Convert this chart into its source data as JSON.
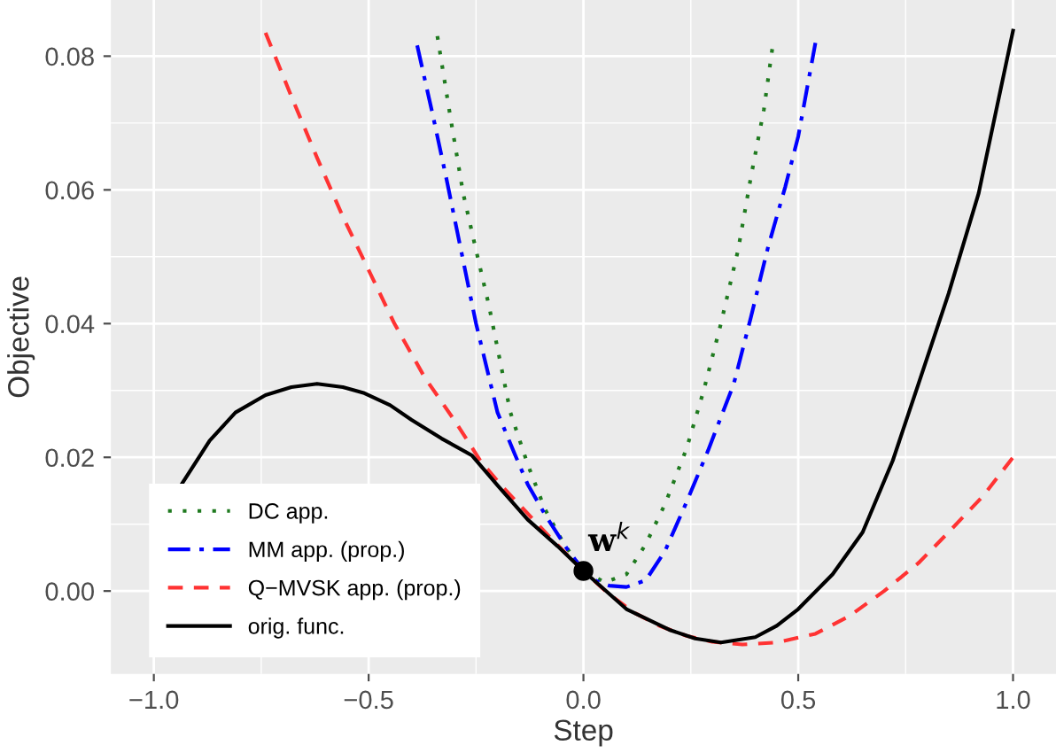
{
  "chart_data": {
    "type": "line",
    "xlabel": "Step",
    "ylabel": "Objective",
    "xlim": [
      -1.1,
      1.1
    ],
    "ylim": [
      -0.0124,
      0.0884
    ],
    "xticks": [
      {
        "value": -1.0,
        "label": "−1.0"
      },
      {
        "value": -0.5,
        "label": "−0.5"
      },
      {
        "value": 0.0,
        "label": "0.0"
      },
      {
        "value": 0.5,
        "label": "0.5"
      },
      {
        "value": 1.0,
        "label": "1.0"
      }
    ],
    "yticks": [
      {
        "value": 0.0,
        "label": "0.00"
      },
      {
        "value": 0.02,
        "label": "0.02"
      },
      {
        "value": 0.04,
        "label": "0.04"
      },
      {
        "value": 0.06,
        "label": "0.06"
      },
      {
        "value": 0.08,
        "label": "0.08"
      }
    ],
    "grid": true,
    "legend": "bottom left",
    "series": [
      {
        "name": "DC app.",
        "color": "#1f7a1f",
        "line_style": "dotted",
        "x": [
          -0.34,
          -0.31,
          -0.28,
          -0.25,
          -0.22,
          -0.17,
          -0.13,
          -0.09,
          -0.045,
          0.0,
          0.05,
          0.1,
          0.145,
          0.19,
          0.24,
          0.28,
          0.32,
          0.36,
          0.39,
          0.42,
          0.44
        ],
        "values": [
          0.083,
          0.071,
          0.0595,
          0.051,
          0.0427,
          0.0267,
          0.019,
          0.0123,
          0.007,
          0.003,
          0.0013,
          0.0025,
          0.007,
          0.013,
          0.0213,
          0.03,
          0.04,
          0.051,
          0.062,
          0.072,
          0.0813
        ]
      },
      {
        "name": "MM app. (prop.)",
        "color": "#0000ff",
        "line_style": "dashdot",
        "x": [
          -0.387,
          -0.35,
          -0.32,
          -0.285,
          -0.25,
          -0.2,
          -0.16,
          -0.13,
          -0.09,
          -0.04,
          0.0,
          0.03,
          0.06,
          0.1,
          0.145,
          0.19,
          0.24,
          0.29,
          0.35,
          0.39,
          0.43,
          0.47,
          0.5,
          0.54
        ],
        "values": [
          0.0816,
          0.071,
          0.062,
          0.051,
          0.04,
          0.0267,
          0.0205,
          0.016,
          0.0115,
          0.0065,
          0.003,
          0.0015,
          0.0008,
          0.0006,
          0.0016,
          0.006,
          0.0133,
          0.021,
          0.031,
          0.041,
          0.0515,
          0.0605,
          0.068,
          0.082
        ]
      },
      {
        "name": "Q−MVSK app. (prop.)",
        "color": "#ff3333",
        "line_style": "dashed",
        "x": [
          -0.74,
          -0.68,
          -0.62,
          -0.56,
          -0.5,
          -0.44,
          -0.37,
          -0.3,
          -0.24,
          -0.19,
          -0.14,
          -0.07,
          0.0,
          0.06,
          0.12,
          0.18,
          0.24,
          0.3,
          0.37,
          0.45,
          0.54,
          0.62,
          0.7,
          0.78,
          0.85,
          0.93,
          1.0
        ],
        "values": [
          0.0835,
          0.074,
          0.0648,
          0.056,
          0.048,
          0.04,
          0.032,
          0.0255,
          0.0195,
          0.0157,
          0.0123,
          0.0075,
          0.003,
          -0.0005,
          -0.0033,
          -0.0053,
          -0.0067,
          -0.0076,
          -0.008,
          -0.0077,
          -0.0064,
          -0.0037,
          0.0,
          0.0042,
          0.0088,
          0.0142,
          0.02
        ]
      },
      {
        "name": "orig. func.",
        "color": "#000000",
        "line_style": "solid",
        "x": [
          -0.935,
          -0.87,
          -0.81,
          -0.74,
          -0.68,
          -0.62,
          -0.56,
          -0.51,
          -0.45,
          -0.4,
          -0.33,
          -0.26,
          -0.2,
          -0.13,
          -0.06,
          0.0,
          0.1,
          0.2,
          0.26,
          0.32,
          0.4,
          0.45,
          0.5,
          0.58,
          0.65,
          0.72,
          0.78,
          0.85,
          0.92,
          1.0
        ],
        "values": [
          0.016,
          0.0225,
          0.0267,
          0.0293,
          0.0305,
          0.031,
          0.0305,
          0.0296,
          0.0278,
          0.0256,
          0.0228,
          0.0203,
          0.0158,
          0.0107,
          0.0067,
          0.003,
          -0.0027,
          -0.0058,
          -0.0071,
          -0.0077,
          -0.0069,
          -0.0052,
          -0.0027,
          0.0025,
          0.0088,
          0.0195,
          0.031,
          0.0445,
          0.0595,
          0.0838
        ]
      },
      {
        "type": "scatter",
        "color": "#000000",
        "marker": "circle",
        "x": [
          0.0
        ],
        "values": [
          0.003
        ]
      }
    ],
    "annotations": [
      {
        "text": "w$^{k}$",
        "x": 0.0,
        "y": 0.003
      }
    ]
  }
}
